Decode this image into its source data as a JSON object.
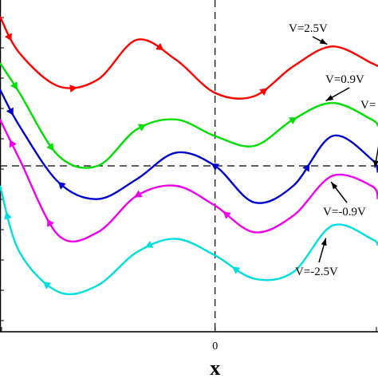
{
  "chart_data": {
    "type": "line",
    "xlabel": "x",
    "ylabel": "",
    "title": "",
    "x_ticks": [
      "0"
    ],
    "xlim": [
      -3.3,
      2.5
    ],
    "ylim": [
      -2.5,
      2.5
    ],
    "grid": false,
    "reference_lines": {
      "vertical_x": 0,
      "horizontal_y": 0,
      "style": "dashed"
    },
    "series": [
      {
        "name": "V=2.5V",
        "color": "#ff0000",
        "x": [
          -3.3,
          -3.0,
          -2.4,
          -1.8,
          -1.2,
          -0.6,
          0.0,
          0.6,
          1.2,
          1.8,
          2.4,
          2.5
        ],
        "y": [
          2.25,
          1.7,
          1.2,
          1.3,
          1.9,
          1.6,
          1.1,
          1.05,
          1.5,
          1.8,
          1.55,
          1.5
        ]
      },
      {
        "name": "V=0.9V",
        "color": "#00dd00",
        "x": [
          -3.3,
          -3.0,
          -2.4,
          -1.8,
          -1.2,
          -0.6,
          0.0,
          0.6,
          1.2,
          1.8,
          2.4,
          2.5
        ],
        "y": [
          1.55,
          1.1,
          0.15,
          0.0,
          0.55,
          0.7,
          0.45,
          0.3,
          0.7,
          0.95,
          0.7,
          0.6
        ]
      },
      {
        "name": "",
        "color": "#0000cc",
        "x": [
          -3.3,
          -3.0,
          -2.4,
          -1.8,
          -1.2,
          -0.6,
          0.0,
          0.6,
          1.2,
          1.8,
          2.4,
          2.5
        ],
        "y": [
          1.15,
          0.6,
          -0.25,
          -0.5,
          -0.2,
          0.2,
          0.0,
          -0.55,
          -0.3,
          0.45,
          0.1,
          -0.1
        ]
      },
      {
        "name": "V=-0.9V",
        "color": "#ee00ee",
        "x": [
          -3.3,
          -3.0,
          -2.4,
          -1.8,
          -1.2,
          -0.6,
          0.0,
          0.6,
          1.2,
          1.8,
          2.4,
          2.5
        ],
        "y": [
          0.7,
          0.1,
          -1.05,
          -1.0,
          -0.45,
          -0.3,
          -0.6,
          -1.0,
          -0.75,
          -0.15,
          -0.3,
          -0.5
        ]
      },
      {
        "name": "V=-2.5V",
        "color": "#00dddd",
        "x": [
          -3.3,
          -3.0,
          -2.4,
          -1.8,
          -1.2,
          -0.6,
          0.0,
          0.6,
          1.2,
          1.8,
          2.4,
          2.5
        ],
        "y": [
          -0.3,
          -1.3,
          -1.9,
          -1.8,
          -1.3,
          -1.1,
          -1.35,
          -1.7,
          -1.6,
          -0.9,
          -1.1,
          -1.2
        ]
      }
    ],
    "annotations": [
      {
        "text": "V=2.5V",
        "target_series": 0,
        "at_x": 1.72
      },
      {
        "text": "V=0.9V",
        "target_series": 1,
        "at_x": 1.7
      },
      {
        "text": "V=",
        "target_series": 2,
        "at_x": 2.5
      },
      {
        "text": "V=-0.9V",
        "target_series": 3,
        "at_x": 1.78
      },
      {
        "text": "V=-2.5V",
        "target_series": 4,
        "at_x": 1.7
      }
    ]
  }
}
